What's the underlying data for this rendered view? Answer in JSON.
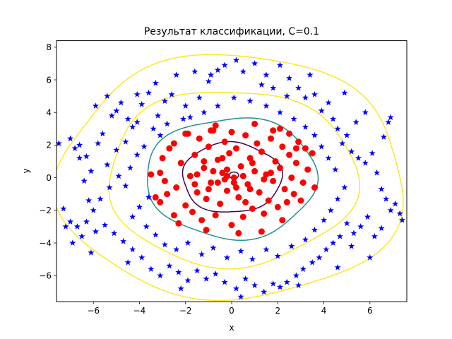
{
  "chart_data": {
    "type": "scatter",
    "title": "Результат классификации, C=0.1",
    "xlabel": "x",
    "ylabel": "y",
    "xlim": [
      -7.6,
      7.6
    ],
    "ylim": [
      -7.6,
      8.4
    ],
    "x_ticks": [
      -6,
      -4,
      -2,
      0,
      2,
      4,
      6
    ],
    "x_tick_labels": [
      "−6",
      "−4",
      "−2",
      "0",
      "2",
      "4",
      "6"
    ],
    "y_ticks": [
      -6,
      -4,
      -2,
      0,
      2,
      4,
      6,
      8
    ],
    "y_tick_labels": [
      "−6",
      "−4",
      "−2",
      "0",
      "2",
      "4",
      "6",
      "8"
    ],
    "grid": false,
    "legend": "none",
    "series": [
      {
        "marker": "circle",
        "color": "#ff0000",
        "points": [
          [
            -3.1,
            0.3
          ],
          [
            -3.0,
            1.2
          ],
          [
            -2.9,
            -0.2
          ],
          [
            -2.8,
            -1.0
          ],
          [
            -3.3,
            -1.2
          ],
          [
            -2.7,
            1.8
          ],
          [
            -2.5,
            2.1
          ],
          [
            -2.4,
            -0.6
          ],
          [
            -2.2,
            0.9
          ],
          [
            -2.0,
            -1.7
          ],
          [
            -1.9,
            2.7
          ],
          [
            -1.8,
            0.1
          ],
          [
            -1.7,
            -2.1
          ],
          [
            -1.6,
            1.4
          ],
          [
            -1.5,
            -0.9
          ],
          [
            -1.4,
            2.4
          ],
          [
            -1.3,
            -2.6
          ],
          [
            -1.2,
            0.6
          ],
          [
            -1.1,
            -1.3
          ],
          [
            -1.0,
            1.9
          ],
          [
            -0.9,
            -0.3
          ],
          [
            -0.8,
            2.9
          ],
          [
            -0.7,
            -2.3
          ],
          [
            -0.6,
            1.1
          ],
          [
            -0.5,
            -1.6
          ],
          [
            -0.4,
            0.3
          ],
          [
            -0.3,
            2.2
          ],
          [
            -0.2,
            -0.8
          ],
          [
            -0.1,
            1.5
          ],
          [
            0.0,
            -2.9
          ],
          [
            0.1,
            0.0
          ],
          [
            0.2,
            1.8
          ],
          [
            0.3,
            -1.2
          ],
          [
            0.4,
            0.7
          ],
          [
            0.5,
            -2.4
          ],
          [
            0.6,
            2.6
          ],
          [
            0.7,
            -0.4
          ],
          [
            0.8,
            1.2
          ],
          [
            0.9,
            -1.9
          ],
          [
            1.0,
            0.4
          ],
          [
            1.1,
            2.1
          ],
          [
            1.2,
            -0.9
          ],
          [
            1.3,
            1.6
          ],
          [
            1.4,
            -2.2
          ],
          [
            1.5,
            0.2
          ],
          [
            1.6,
            -1.4
          ],
          [
            1.7,
            2.4
          ],
          [
            1.8,
            -0.2
          ],
          [
            1.9,
            1.0
          ],
          [
            2.0,
            -1.8
          ],
          [
            2.1,
            0.6
          ],
          [
            2.2,
            1.9
          ],
          [
            2.3,
            -0.7
          ],
          [
            2.4,
            -1.5
          ],
          [
            2.5,
            1.4
          ],
          [
            2.6,
            0.0
          ],
          [
            2.7,
            -1.0
          ],
          [
            2.8,
            0.9
          ],
          [
            2.9,
            2.2
          ],
          [
            3.1,
            -0.3
          ],
          [
            3.3,
            0.5
          ],
          [
            3.5,
            1.5
          ],
          [
            3.6,
            -0.6
          ],
          [
            2.5,
            2.7
          ],
          [
            1.0,
            3.3
          ],
          [
            -0.9,
            2.9
          ],
          [
            -2.0,
            2.7
          ],
          [
            -3.5,
            0.2
          ],
          [
            -1.1,
            -3.2
          ],
          [
            0.3,
            -3.4
          ],
          [
            1.3,
            -3.3
          ],
          [
            2.2,
            -2.6
          ],
          [
            -2.5,
            -2.3
          ],
          [
            -3.1,
            -1.5
          ],
          [
            3.2,
            1.8
          ],
          [
            -0.2,
            0.1
          ],
          [
            0.5,
            0.1
          ],
          [
            -0.6,
            -0.3
          ],
          [
            0.9,
            0.9
          ],
          [
            -1.2,
            1.0
          ],
          [
            -0.3,
            -0.1
          ],
          [
            0.2,
            -0.6
          ],
          [
            -0.8,
            0.4
          ],
          [
            1.4,
            -0.1
          ],
          [
            -1.6,
            -0.4
          ],
          [
            0.6,
            -1.5
          ],
          [
            -0.4,
            1.2
          ],
          [
            2.8,
            1.8
          ],
          [
            3.0,
            -1.4
          ],
          [
            -2.3,
            -2.8
          ],
          [
            -0.7,
            3.2
          ],
          [
            0.0,
            2.8
          ],
          [
            1.8,
            2.9
          ],
          [
            2.1,
            3.0
          ],
          [
            -1.5,
            0.2
          ],
          [
            0.1,
            -0.3
          ],
          [
            -0.2,
            0.5
          ],
          [
            0.8,
            -0.7
          ],
          [
            -1.0,
            -0.7
          ],
          [
            1.7,
            0.3
          ]
        ]
      },
      {
        "marker": "star",
        "color": "#0000ff",
        "points": [
          [
            -7.5,
            2.1
          ],
          [
            -7.0,
            2.4
          ],
          [
            -6.8,
            1.8
          ],
          [
            -6.6,
            1.2
          ],
          [
            -6.3,
            1.3
          ],
          [
            -6.1,
            0.4
          ],
          [
            -5.8,
            2.1
          ],
          [
            -5.6,
            2.7
          ],
          [
            -5.4,
            0.8
          ],
          [
            -5.2,
            3.8
          ],
          [
            -5.0,
            4.1
          ],
          [
            -4.8,
            4.6
          ],
          [
            -4.5,
            3.6
          ],
          [
            -4.3,
            3.1
          ],
          [
            -4.1,
            3.4
          ],
          [
            -3.9,
            4.5
          ],
          [
            -3.6,
            5.2
          ],
          [
            -3.4,
            3.0
          ],
          [
            -3.2,
            3.8
          ],
          [
            -2.9,
            4.7
          ],
          [
            -2.6,
            5.1
          ],
          [
            -2.4,
            6.3
          ],
          [
            -2.0,
            4.4
          ],
          [
            -1.8,
            3.7
          ],
          [
            -1.4,
            4.9
          ],
          [
            -1.0,
            5.9
          ],
          [
            -0.6,
            6.6
          ],
          [
            -0.3,
            6.9
          ],
          [
            0.2,
            7.2
          ],
          [
            0.5,
            6.5
          ],
          [
            1.0,
            7.0
          ],
          [
            1.5,
            6.3
          ],
          [
            1.8,
            5.5
          ],
          [
            2.1,
            6.9
          ],
          [
            2.5,
            6.1
          ],
          [
            2.9,
            5.5
          ],
          [
            3.2,
            4.9
          ],
          [
            3.6,
            5.1
          ],
          [
            3.9,
            4.1
          ],
          [
            4.2,
            4.6
          ],
          [
            4.4,
            3.6
          ],
          [
            4.6,
            3.0
          ],
          [
            4.8,
            2.1
          ],
          [
            5.0,
            2.6
          ],
          [
            5.2,
            1.6
          ],
          [
            5.5,
            1.2
          ],
          [
            5.8,
            0.9
          ],
          [
            6.1,
            1.5
          ],
          [
            6.3,
            0.3
          ],
          [
            6.5,
            -0.7
          ],
          [
            6.7,
            -1.3
          ],
          [
            6.9,
            -2.0
          ],
          [
            7.1,
            -1.6
          ],
          [
            7.3,
            -2.2
          ],
          [
            7.4,
            -2.6
          ],
          [
            6.6,
            2.5
          ],
          [
            6.8,
            3.4
          ],
          [
            6.9,
            3.7
          ],
          [
            5.9,
            -2.4
          ],
          [
            5.6,
            -3.0
          ],
          [
            5.3,
            -3.4
          ],
          [
            5.0,
            -2.8
          ],
          [
            4.7,
            -3.6
          ],
          [
            4.4,
            -4.0
          ],
          [
            4.1,
            -4.4
          ],
          [
            3.8,
            -4.9
          ],
          [
            3.5,
            -5.2
          ],
          [
            3.1,
            -5.6
          ],
          [
            2.8,
            -6.0
          ],
          [
            2.4,
            -6.4
          ],
          [
            2.1,
            -6.7
          ],
          [
            1.8,
            -6.5
          ],
          [
            1.4,
            -7.0
          ],
          [
            1.0,
            -6.6
          ],
          [
            0.6,
            -6.2
          ],
          [
            0.2,
            -6.8
          ],
          [
            -0.3,
            -6.4
          ],
          [
            -0.7,
            -5.9
          ],
          [
            -1.1,
            -6.2
          ],
          [
            -1.5,
            -5.7
          ],
          [
            -1.9,
            -6.3
          ],
          [
            -2.3,
            -5.8
          ],
          [
            -2.7,
            -5.4
          ],
          [
            -3.1,
            -6.0
          ],
          [
            -3.5,
            -5.6
          ],
          [
            -3.9,
            -4.9
          ],
          [
            -4.3,
            -4.4
          ],
          [
            -4.7,
            -3.9
          ],
          [
            -5.1,
            -3.4
          ],
          [
            -5.5,
            -2.9
          ],
          [
            -5.9,
            -3.3
          ],
          [
            -6.3,
            -2.7
          ],
          [
            -6.7,
            -3.0
          ],
          [
            -7.0,
            -2.7
          ],
          [
            -7.2,
            -3.0
          ],
          [
            -6.9,
            -4.0
          ],
          [
            -6.5,
            -3.6
          ],
          [
            -6.0,
            -2.0
          ],
          [
            -5.7,
            -1.3
          ],
          [
            -5.3,
            -0.6
          ],
          [
            -4.9,
            0.1
          ],
          [
            -4.6,
            -0.5
          ],
          [
            -4.4,
            0.6
          ],
          [
            -4.1,
            1.4
          ],
          [
            -3.8,
            1.9
          ],
          [
            -3.6,
            -1.2
          ],
          [
            -4.0,
            -1.8
          ],
          [
            -4.3,
            -2.4
          ],
          [
            -3.7,
            -3.0
          ],
          [
            -3.3,
            -3.5
          ],
          [
            -2.9,
            -4.1
          ],
          [
            -2.4,
            -4.4
          ],
          [
            -1.9,
            -4.0
          ],
          [
            -1.3,
            -4.7
          ],
          [
            -0.8,
            -4.3
          ],
          [
            -0.2,
            -4.9
          ],
          [
            0.4,
            -4.5
          ],
          [
            0.9,
            -5.0
          ],
          [
            1.5,
            -4.4
          ],
          [
            2.0,
            -4.8
          ],
          [
            2.6,
            -4.2
          ],
          [
            3.2,
            -3.8
          ],
          [
            3.6,
            -3.2
          ],
          [
            4.0,
            -2.6
          ],
          [
            4.3,
            -2.0
          ],
          [
            4.6,
            -1.3
          ],
          [
            4.9,
            -0.6
          ],
          [
            4.5,
            0.5
          ],
          [
            4.2,
            1.2
          ],
          [
            3.9,
            1.9
          ],
          [
            3.6,
            2.6
          ],
          [
            3.2,
            3.1
          ],
          [
            2.7,
            3.6
          ],
          [
            2.1,
            4.0
          ],
          [
            1.5,
            4.4
          ],
          [
            0.8,
            4.7
          ],
          [
            0.1,
            4.9
          ],
          [
            -0.6,
            4.4
          ],
          [
            -1.2,
            4.0
          ],
          [
            -2.1,
            3.6
          ],
          [
            -2.8,
            3.3
          ],
          [
            -3.1,
            2.6
          ],
          [
            -4.6,
            2.2
          ],
          [
            -5.0,
            1.7
          ],
          [
            -6.4,
            -0.2
          ],
          [
            -6.2,
            -1.4
          ],
          [
            5.8,
            4.0
          ],
          [
            5.2,
            -4.2
          ],
          [
            6.2,
            -3.6
          ],
          [
            3.4,
            6.3
          ],
          [
            1.3,
            5.7
          ],
          [
            -1.6,
            6.5
          ],
          [
            -4.1,
            5.1
          ],
          [
            -5.9,
            4.4
          ],
          [
            -6.6,
            2.0
          ],
          [
            -7.3,
            -1.9
          ],
          [
            -6.1,
            -4.6
          ],
          [
            -4.5,
            -5.2
          ],
          [
            -2.2,
            -6.8
          ],
          [
            0.4,
            -7.3
          ],
          [
            2.9,
            -6.6
          ],
          [
            4.6,
            -5.5
          ],
          [
            6.0,
            -4.9
          ],
          [
            6.5,
            -3.1
          ],
          [
            5.4,
            3.4
          ],
          [
            4.9,
            5.2
          ],
          [
            2.4,
            5.0
          ],
          [
            -0.9,
            6.3
          ],
          [
            -3.3,
            5.8
          ],
          [
            -5.4,
            5.0
          ]
        ]
      }
    ],
    "contours": [
      {
        "color": "#440154",
        "radius": 2.15
      },
      {
        "color": "#440154",
        "radius": 0.2,
        "cx": 0.1,
        "cy": 0.15
      },
      {
        "color": "#21918c",
        "radius": 3.7
      },
      {
        "color": "#fde725",
        "radius": 5.4
      },
      {
        "color": "#fde725",
        "radius": 7.5
      }
    ]
  }
}
